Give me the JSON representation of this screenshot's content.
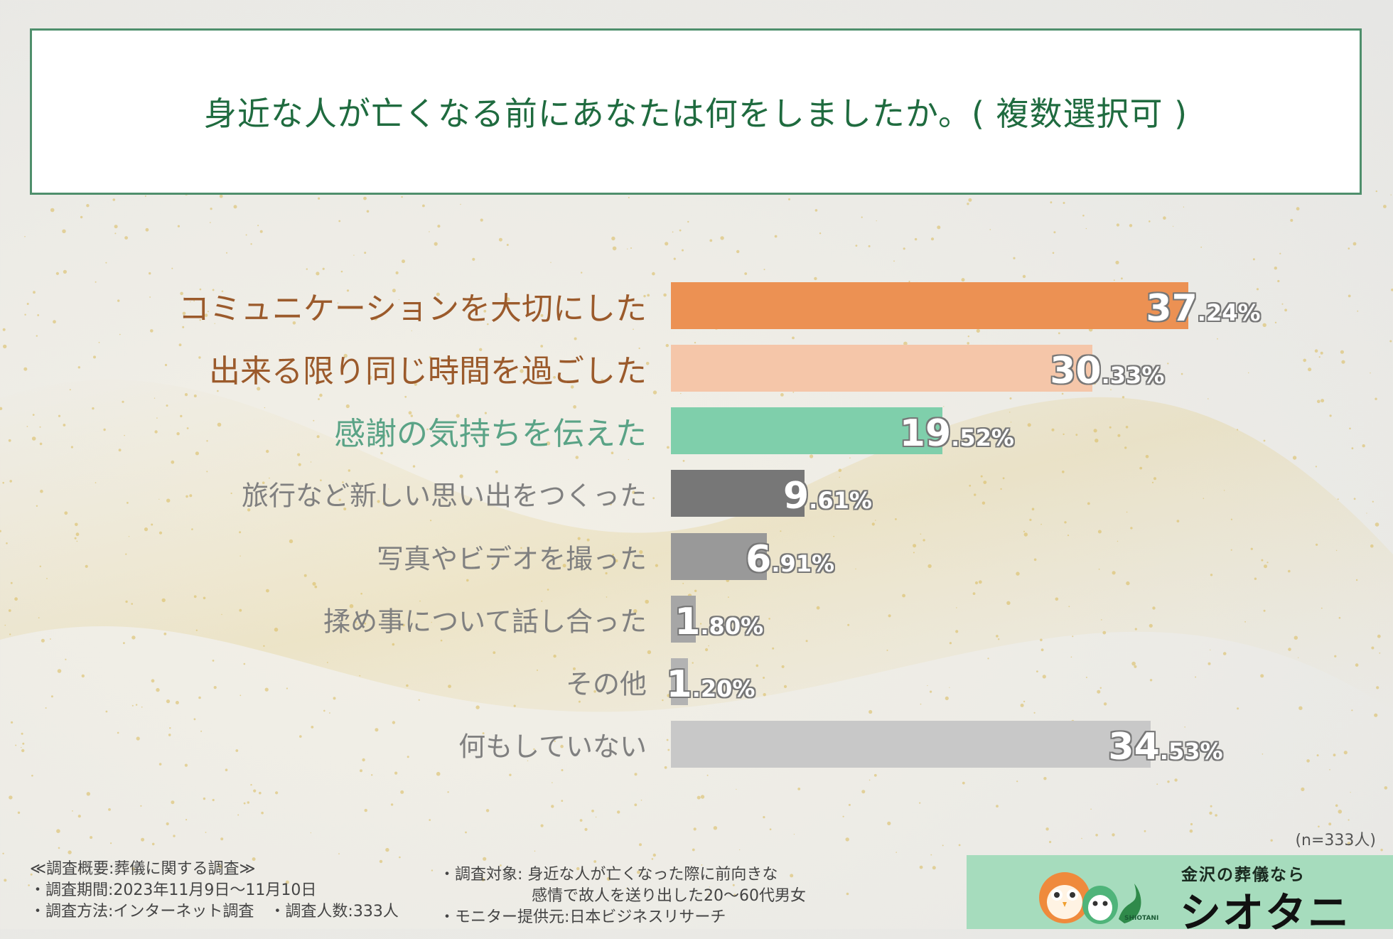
{
  "title": "身近な人が亡くなる前にあなたは何をしましたか。( 複数選択可 )",
  "chart_data": {
    "type": "bar",
    "orientation": "horizontal",
    "categories": [
      "コミュニケーションを大切にした",
      "出来る限り同じ時間を過ごした",
      "感謝の気持ちを伝えた",
      "旅行など新しい思い出をつくった",
      "写真やビデオを撮った",
      "揉め事について話し合った",
      "その他",
      "何もしていない"
    ],
    "values": [
      37.24,
      30.33,
      19.52,
      9.61,
      6.91,
      1.8,
      1.2,
      34.53
    ],
    "value_labels": [
      {
        "int": "37",
        "dec": ".24%"
      },
      {
        "int": "30",
        "dec": ".33%"
      },
      {
        "int": "19",
        "dec": ".52%"
      },
      {
        "int": "9",
        "dec": ".61%"
      },
      {
        "int": "6",
        "dec": ".91%"
      },
      {
        "int": "1",
        "dec": ".80%"
      },
      {
        "int": "1",
        "dec": ".20%"
      },
      {
        "int": "34",
        "dec": ".53%"
      }
    ],
    "bar_colors": [
      "#ec9153",
      "#f5c6a9",
      "#7fcfab",
      "#777777",
      "#999999",
      "#a6a6a6",
      "#b3b3b3",
      "#c8c8c8"
    ],
    "label_colors": [
      "#9b5a2b",
      "#9b5a2b",
      "#5aa386",
      "#808080",
      "#808080",
      "#808080",
      "#808080",
      "#808080"
    ],
    "grid": false,
    "legend": "none",
    "unit": "%"
  },
  "sample_size": "(n=333人)",
  "footer": {
    "survey_title": "≪調査概要:葬儀に関する調査≫",
    "period": "・調査期間:2023年11月9日〜11月10日",
    "method_and_count": "・調査方法:インターネット調査　・調査人数:333人",
    "target_line1": "・調査対象: 身近な人が亡くなった際に前向きな",
    "target_line2": "感情で故人を送り出した20〜60代男女",
    "provider": "・モニター提供元:日本ビジネスリサーチ"
  },
  "brand": {
    "tagline": "金沢の葬儀なら",
    "name": "シオタニ",
    "small_text": "SHIOTANI"
  }
}
